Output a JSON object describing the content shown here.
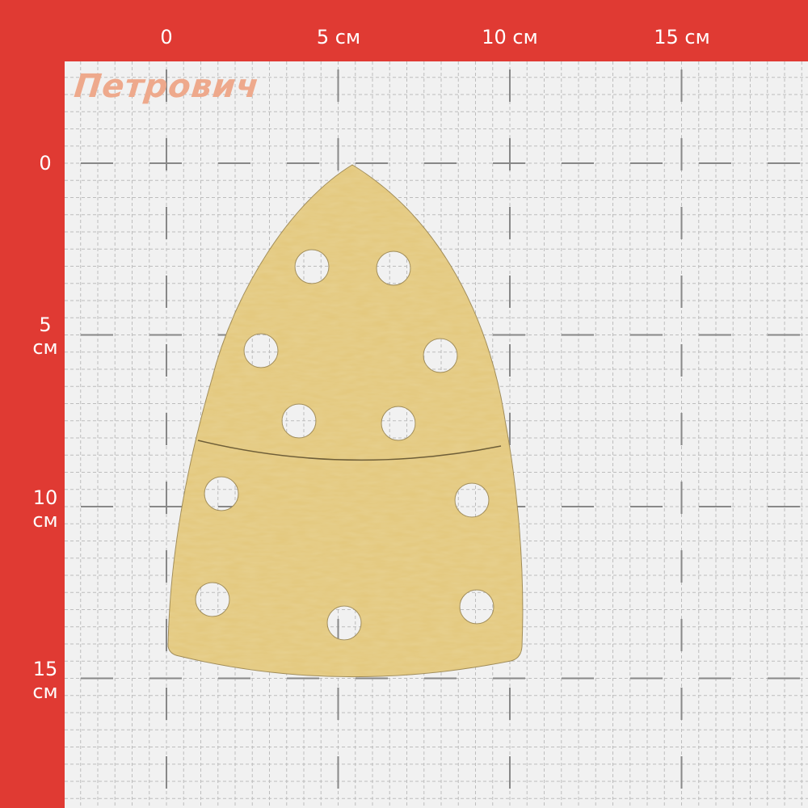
{
  "brand": {
    "logo_text": "Петрович",
    "logo_color": "#eea98c"
  },
  "ruler": {
    "x_labels": [
      "0",
      "5 см",
      "10 см",
      "15 см"
    ],
    "y_labels": [
      {
        "num": "0",
        "unit": ""
      },
      {
        "num": "5",
        "unit": "см"
      },
      {
        "num": "10",
        "unit": "см"
      },
      {
        "num": "15",
        "unit": "см"
      }
    ],
    "background_color": "#e03a33",
    "grid_color": "#f1f1f1"
  },
  "product": {
    "name": "sanding-sheet-delta",
    "color": "#e3c77b",
    "hole_count": 11
  }
}
